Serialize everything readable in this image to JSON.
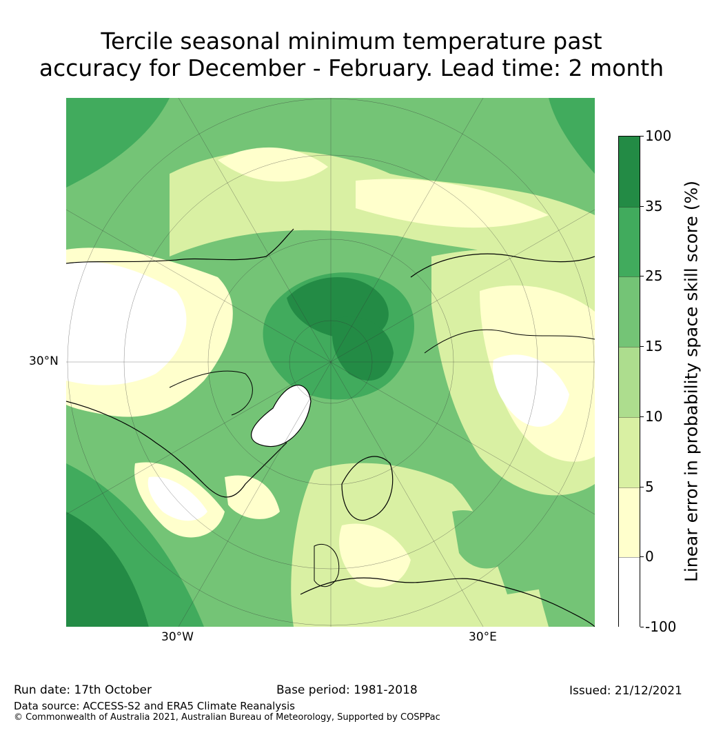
{
  "title_line1": "Tercile seasonal minimum temperature past",
  "title_line2": "accuracy for December - February. Lead time: 2 month",
  "map": {
    "projection": "north-polar-stereographic",
    "lat_label": "30°N",
    "lon_labels": [
      "30°W",
      "30°E"
    ]
  },
  "colorbar": {
    "title": "Linear error in probability space skill score (%)",
    "ticks": [
      "100",
      "35",
      "25",
      "15",
      "10",
      "5",
      "0",
      "-100"
    ],
    "bins": [
      {
        "range": "35 to 100",
        "color": "#238b45"
      },
      {
        "range": "25 to 35",
        "color": "#41ab5d"
      },
      {
        "range": "15 to 25",
        "color": "#74c476"
      },
      {
        "range": "10 to 15",
        "color": "#addd8e"
      },
      {
        "range": "5 to 10",
        "color": "#d9f0a3"
      },
      {
        "range": "0 to 5",
        "color": "#ffffcc"
      },
      {
        "range": "-100 to 0",
        "color": "#ffffff"
      }
    ]
  },
  "footer": {
    "run_date": "Run date: 17th October",
    "base_period": "Base period: 1981-2018",
    "issued": "Issued: 21/12/2021",
    "data_source": "Data source: ACCESS-S2 and ERA5 Climate Reanalysis",
    "copyright": "© Commonwealth of Australia 2021, Australian Bureau of Meteorology, Supported by COSPPac"
  }
}
